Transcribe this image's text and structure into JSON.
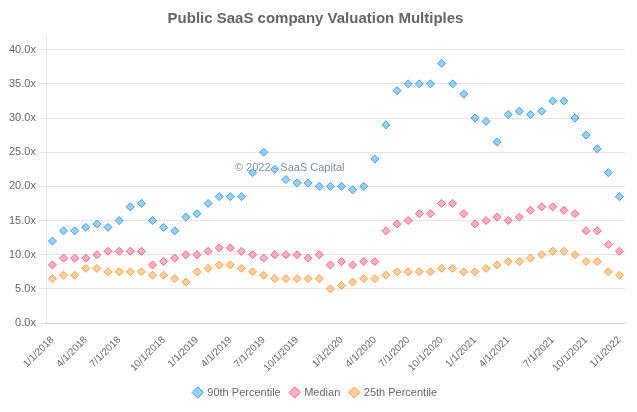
{
  "chart_data": {
    "type": "scatter",
    "title": "Public SaaS company Valuation Multiples",
    "annotations": [
      "© 2022 - SaaS Capital"
    ],
    "categories": [
      "1/1/2018",
      null,
      null,
      "4/1/2018",
      null,
      null,
      "7/1/2018",
      null,
      null,
      null,
      "10/1/2018",
      null,
      null,
      "1/1/2019",
      null,
      null,
      "4/1/2019",
      null,
      null,
      "7/1/2019",
      null,
      null,
      "10/1/2019",
      null,
      null,
      null,
      "1/1/2020",
      null,
      null,
      "4/1/2020",
      null,
      null,
      "7/1/2020",
      null,
      null,
      "10/1/2020",
      null,
      null,
      "1/1/2021",
      null,
      null,
      "4/1/2021",
      null,
      null,
      null,
      "7/1/2021",
      null,
      null,
      "10/1/2021",
      null,
      null,
      "1/1/2022"
    ],
    "series": [
      {
        "name": "90th Percentile",
        "marker": "diamond",
        "values": [
          12.0,
          13.5,
          13.5,
          14.0,
          14.5,
          14.0,
          15.0,
          17.0,
          17.5,
          15.0,
          14.0,
          13.5,
          15.5,
          16.0,
          17.5,
          18.5,
          18.5,
          18.5,
          22.0,
          25.0,
          22.5,
          21.0,
          20.5,
          20.5,
          20.0,
          20.0,
          20.0,
          19.5,
          20.0,
          24.0,
          29.0,
          34.0,
          35.0,
          35.0,
          35.0,
          38.0,
          35.0,
          33.5,
          30.0,
          29.5,
          26.5,
          30.5,
          31.0,
          30.5,
          31.0,
          32.5,
          32.5,
          30.0,
          27.5,
          25.5,
          22.0,
          18.5
        ]
      },
      {
        "name": "Median",
        "marker": "diamond",
        "values": [
          8.5,
          9.5,
          9.5,
          9.5,
          10.0,
          10.5,
          10.5,
          10.5,
          10.5,
          8.5,
          9.0,
          9.5,
          10.0,
          10.0,
          10.5,
          11.0,
          11.0,
          10.5,
          10.0,
          9.5,
          10.0,
          10.0,
          10.0,
          9.5,
          10.0,
          8.5,
          9.0,
          8.5,
          9.0,
          9.0,
          13.5,
          14.5,
          15.0,
          16.0,
          16.0,
          17.5,
          17.5,
          16.0,
          14.5,
          15.0,
          15.5,
          15.0,
          15.5,
          16.5,
          17.0,
          17.0,
          16.5,
          16.0,
          13.5,
          13.5,
          11.5,
          10.5
        ]
      },
      {
        "name": "25th Percentile",
        "marker": "diamond",
        "values": [
          6.5,
          7.0,
          7.0,
          8.0,
          8.0,
          7.5,
          7.5,
          7.5,
          7.5,
          7.0,
          7.0,
          6.5,
          6.0,
          7.5,
          8.0,
          8.5,
          8.5,
          8.0,
          7.5,
          7.0,
          6.5,
          6.5,
          6.5,
          6.5,
          6.5,
          5.0,
          5.5,
          6.0,
          6.5,
          6.5,
          7.0,
          7.5,
          7.5,
          7.5,
          7.5,
          8.0,
          8.0,
          7.5,
          7.5,
          8.0,
          8.5,
          9.0,
          9.0,
          9.5,
          10.0,
          10.5,
          10.5,
          10.0,
          9.0,
          9.0,
          7.5,
          7.0
        ]
      }
    ],
    "ylim": [
      0,
      42
    ],
    "yticks": [
      {
        "value": 0,
        "label": "0.0x"
      },
      {
        "value": 5,
        "label": "5.0x"
      },
      {
        "value": 10,
        "label": "10.0x"
      },
      {
        "value": 15,
        "label": "15.0x"
      },
      {
        "value": 20,
        "label": "20.0x"
      },
      {
        "value": 25,
        "label": "25.0x"
      },
      {
        "value": 30,
        "label": "30.0x"
      },
      {
        "value": 35,
        "label": "35.0x"
      },
      {
        "value": 40,
        "label": "40.0x"
      }
    ],
    "grid": "y",
    "legend": "bottom"
  }
}
